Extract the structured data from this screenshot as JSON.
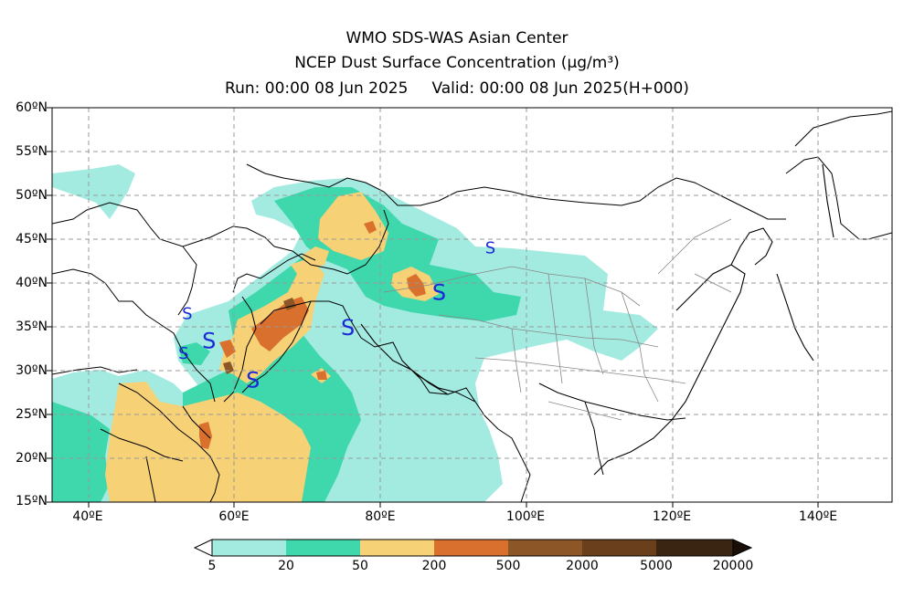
{
  "title": {
    "line1": "WMO SDS-WAS Asian Center",
    "line2": "NCEP Dust Surface Concentration (μg/m³)",
    "run": "Run: 00:00 08 Jun 2025",
    "valid": "Valid: 00:00 08 Jun 2025(H+000)"
  },
  "axes": {
    "lat_labels": [
      "60ºN",
      "55ºN",
      "50ºN",
      "45ºN",
      "40ºN",
      "35ºN",
      "30ºN",
      "25ºN",
      "20ºN",
      "15ºN"
    ],
    "lon_labels": [
      "40ºE",
      "60ºE",
      "80ºE",
      "100ºE",
      "120ºE",
      "140ºE"
    ],
    "lat_range": [
      15,
      60
    ],
    "lon_range": [
      35,
      150
    ],
    "grid": "dashed"
  },
  "colorbar": {
    "labels": [
      "5",
      "20",
      "50",
      "200",
      "500",
      "2000",
      "5000",
      "20000"
    ],
    "colors": [
      "#a3ebe0",
      "#3fd8ac",
      "#f7d176",
      "#d9702e",
      "#8c5626",
      "#6a401c",
      "#3a2412"
    ],
    "extend": "both"
  },
  "storm_marker": "S",
  "storm_markers": [
    {
      "lon": 53.5,
      "lat": 36.5,
      "size": "small"
    },
    {
      "lon": 56.5,
      "lat": 33.5,
      "size": "large"
    },
    {
      "lon": 53.0,
      "lat": 32.0,
      "size": "small"
    },
    {
      "lon": 62.5,
      "lat": 29.0,
      "size": "large"
    },
    {
      "lon": 75.5,
      "lat": 35.0,
      "size": "large"
    },
    {
      "lon": 88.0,
      "lat": 39.0,
      "size": "large"
    },
    {
      "lon": 95.0,
      "lat": 44.0,
      "size": "small"
    }
  ]
}
